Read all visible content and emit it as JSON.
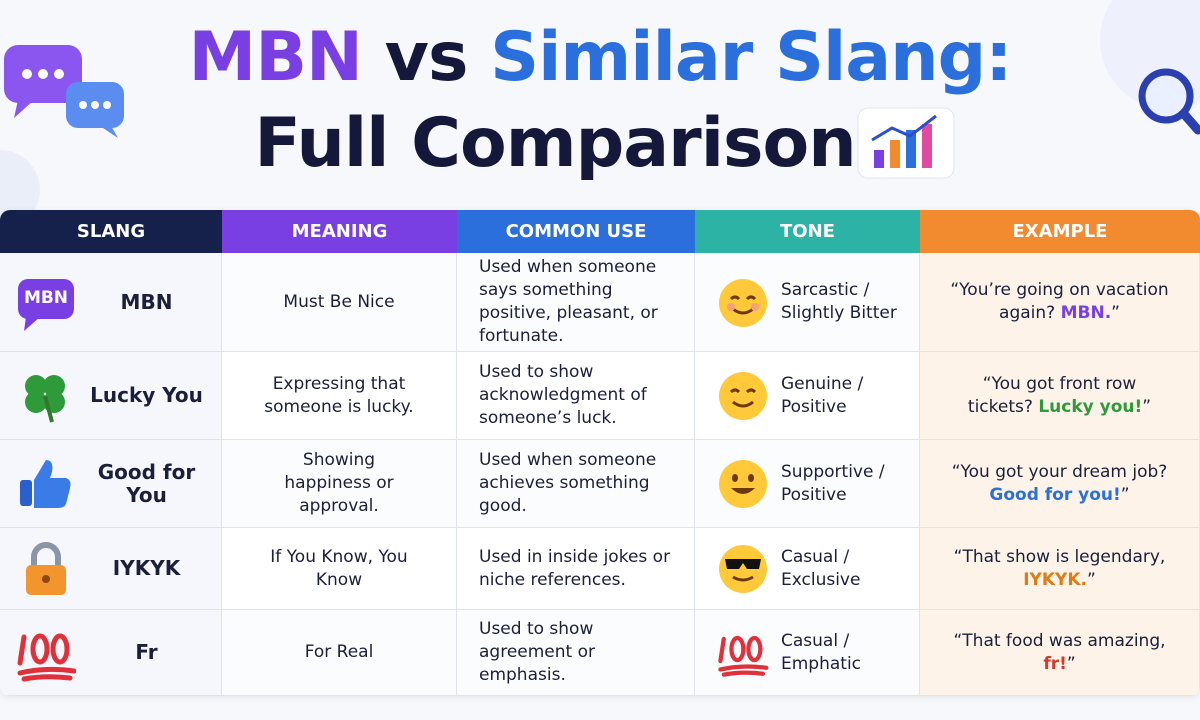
{
  "header": {
    "title_parts": [
      "MBN",
      "vs",
      "Similar Slang:",
      "Full Comparison"
    ]
  },
  "table": {
    "columns": [
      {
        "label": "SLANG",
        "color": "#15214b"
      },
      {
        "label": "MEANING",
        "color": "#7a3fe2"
      },
      {
        "label": "COMMON USE",
        "color": "#2b6fdc"
      },
      {
        "label": "TONE",
        "color": "#2cb3a5"
      },
      {
        "label": "EXAMPLE",
        "color": "#f28b30"
      }
    ],
    "rows": [
      {
        "badge": "MBN",
        "slang": "MBN",
        "meaning": "Must Be Nice",
        "use": "Used when someone says something positive, pleasant, or fortunate.",
        "tone": "Sarcastic / Slightly Bitter",
        "example_prefix": "“You’re going on vacation again? ",
        "example_highlight": "MBN.",
        "example_suffix": "”",
        "highlight_color": "#7a3fe2"
      },
      {
        "slang": "Lucky You",
        "meaning": "Expressing that someone is lucky.",
        "use": "Used to show acknowledgment of someone’s luck.",
        "tone": "Genuine / Positive",
        "example_prefix": "“You got front row tickets? ",
        "example_highlight": "Lucky you!",
        "example_suffix": "”",
        "highlight_color": "#2e9a3a"
      },
      {
        "slang": "Good for You",
        "meaning": "Showing happiness or approval.",
        "use": "Used when someone achieves something good.",
        "tone": "Supportive / Positive",
        "example_prefix": "“You got your dream job? ",
        "example_highlight": "Good for you!",
        "example_suffix": "”",
        "highlight_color": "#2b6fdc"
      },
      {
        "slang": "IYKYK",
        "meaning": "If You Know, You Know",
        "use": "Used in inside jokes or niche references.",
        "tone": "Casual / Exclusive",
        "example_prefix": "“That show is legendary, ",
        "example_highlight": "IYKYK.",
        "example_suffix": "”",
        "highlight_color": "#e07a12"
      },
      {
        "slang": "Fr",
        "meaning": "For Real",
        "use": "Used to show agreement or emphasis.",
        "tone": "Casual / Emphatic",
        "example_prefix": "“That food was amazing, ",
        "example_highlight": "fr!",
        "example_suffix": "”",
        "highlight_color": "#d63a2a"
      }
    ]
  }
}
